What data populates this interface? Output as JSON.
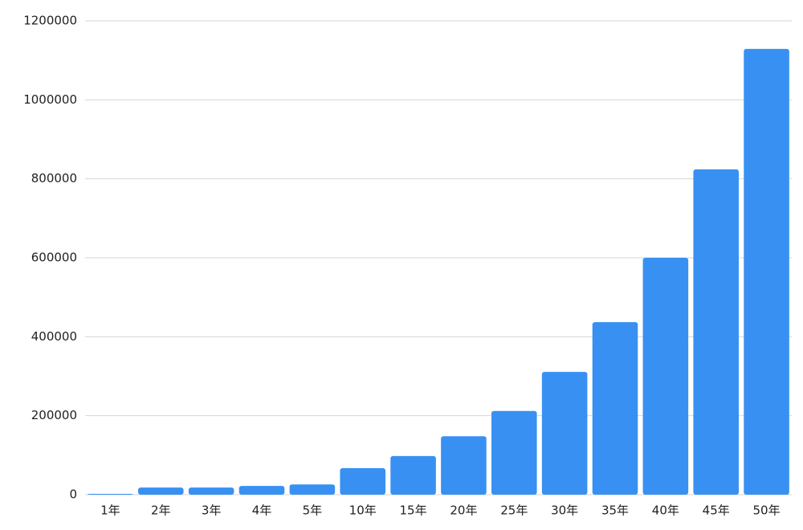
{
  "chart_data": {
    "type": "bar",
    "categories": [
      "1年",
      "2年",
      "3年",
      "4年",
      "5年",
      "10年",
      "15年",
      "20年",
      "25年",
      "30年",
      "35年",
      "40年",
      "45年",
      "50年"
    ],
    "values": [
      2000,
      18000,
      18000,
      22000,
      26000,
      67000,
      98000,
      148000,
      212000,
      311000,
      437000,
      600000,
      824000,
      1129000
    ],
    "color": "#3891f2",
    "ylim": [
      0,
      1200000
    ],
    "yticks": [
      0,
      200000,
      400000,
      600000,
      800000,
      1000000,
      1200000
    ],
    "grid": true
  }
}
